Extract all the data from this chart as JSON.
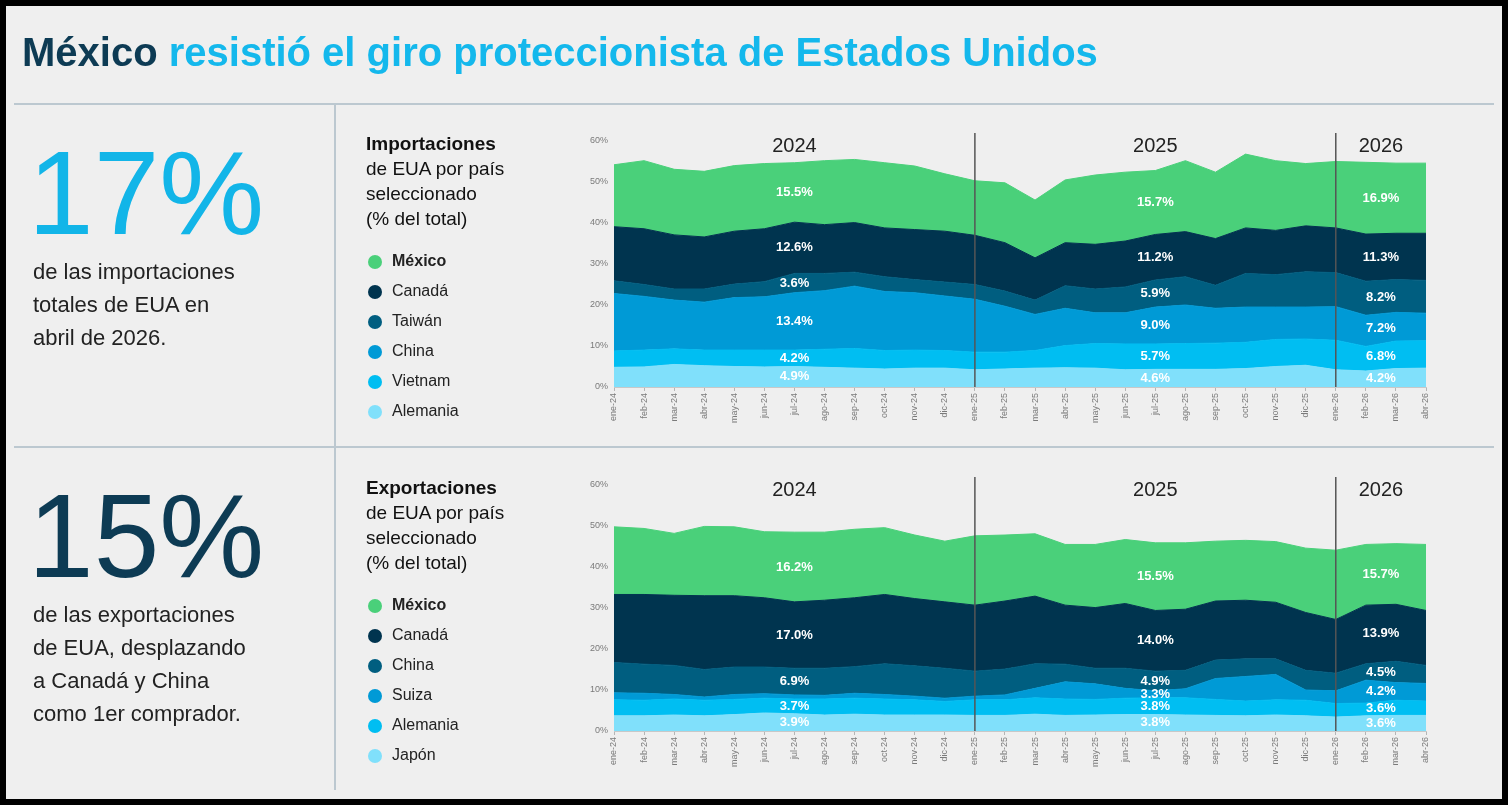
{
  "chart_data": [
    {
      "type": "other",
      "title": "México resistió el giro proteccionista de Estados Unidos",
      "colors": [
        "#0d3b54",
        "#14b8ec"
      ]
    },
    {
      "type": "other",
      "color": "#12b5e8",
      "annotations": [
        "17%",
        "de las importaciones totales de EUA en abril de 2026."
      ]
    },
    {
      "type": "area",
      "title": "Importaciones",
      "subtitle": "de EUA por país seleccionado (% del total)",
      "stacked": true,
      "legend": "left",
      "categories": [
        "ene-24",
        "feb-24",
        "mar-24",
        "abr-24",
        "may-24",
        "jun-24",
        "jul-24",
        "ago-24",
        "sep-24",
        "oct-24",
        "nov-24",
        "dic-24",
        "ene-25",
        "feb-25",
        "mar-25",
        "abr-25",
        "may-25",
        "jun-25",
        "jul-25",
        "ago-25",
        "sep-25",
        "oct-25",
        "nov-25",
        "dic-25",
        "ene-26",
        "feb-26",
        "mar-26",
        "abr-26"
      ],
      "ylim": [
        0,
        60
      ],
      "yticks": [
        {
          "value": 0,
          "label": "0%"
        },
        {
          "value": 10,
          "label": "10%"
        },
        {
          "value": 20,
          "label": "20%"
        },
        {
          "value": 30,
          "label": "30%"
        },
        {
          "value": 40,
          "label": "40%"
        },
        {
          "value": 50,
          "label": "50%"
        },
        {
          "value": 60,
          "label": "60%"
        }
      ],
      "series": [
        {
          "name": "Alemania",
          "color": "#80e0fb",
          "values": [
            4.8,
            4.9,
            5.5,
            5.2,
            5.0,
            4.9,
            5.0,
            4.8,
            4.6,
            4.4,
            4.6,
            4.6,
            4.2,
            4.4,
            4.6,
            4.7,
            4.6,
            4.2,
            4.3,
            4.3,
            4.3,
            4.5,
            5.0,
            5.3,
            4.2,
            3.9,
            4.5,
            4.6
          ]
        },
        {
          "name": "Vietnam",
          "color": "#00bef2",
          "values": [
            4.0,
            4.1,
            3.8,
            3.8,
            4.0,
            4.1,
            4.0,
            4.4,
            4.8,
            4.5,
            4.4,
            4.3,
            4.3,
            4.1,
            4.3,
            5.4,
            6.0,
            6.3,
            6.2,
            6.3,
            6.4,
            6.4,
            6.6,
            6.4,
            7.2,
            6.0,
            6.7,
            6.7
          ]
        },
        {
          "name": "China",
          "color": "#009ad6",
          "values": [
            14.0,
            13.1,
            11.9,
            11.7,
            12.8,
            13.0,
            14.0,
            14.3,
            15.2,
            14.4,
            14.0,
            13.3,
            12.9,
            11.2,
            8.8,
            9.1,
            7.5,
            7.6,
            9.0,
            9.4,
            8.5,
            8.6,
            7.9,
            7.8,
            8.2,
            7.6,
            7.0,
            6.7
          ]
        },
        {
          "name": "Taiwán",
          "color": "#005e80",
          "values": [
            3.1,
            2.9,
            2.7,
            3.2,
            3.3,
            3.7,
            4.7,
            4.2,
            3.4,
            3.6,
            3.2,
            3.4,
            3.6,
            3.7,
            3.5,
            5.5,
            5.8,
            6.3,
            6.6,
            6.9,
            5.6,
            8.2,
            7.9,
            8.6,
            8.3,
            8.3,
            8.0,
            8.0
          ]
        },
        {
          "name": "Canadá",
          "color": "#00344f",
          "values": [
            13.2,
            13.6,
            13.2,
            12.7,
            12.9,
            12.9,
            12.5,
            11.9,
            12.1,
            11.9,
            12.2,
            12.4,
            12.0,
            11.8,
            10.3,
            10.5,
            10.9,
            11.2,
            11.1,
            11.0,
            11.4,
            11.1,
            10.8,
            11.2,
            10.9,
            11.5,
            11.3,
            11.5
          ]
        },
        {
          "name": "México",
          "color": "#4ad07a",
          "values": [
            15.1,
            16.6,
            16.0,
            16.0,
            16.0,
            15.9,
            14.5,
            15.6,
            15.4,
            15.9,
            15.5,
            14.0,
            13.3,
            14.6,
            14.1,
            15.3,
            16.9,
            16.8,
            15.6,
            17.3,
            16.2,
            18.0,
            17.0,
            15.2,
            16.2,
            17.5,
            17.1,
            17.1
          ]
        }
      ],
      "ref_lines": [
        {
          "axis": "x",
          "value": "ene-25",
          "color": "#555555"
        },
        {
          "axis": "x",
          "value": "ene-26",
          "color": "#555555"
        }
      ],
      "annotations": [
        "2024",
        "2025",
        "2026",
        "15.5%",
        "12.6%",
        "3.6%",
        "13.4%",
        "4.2%",
        "4.9%",
        "15.7%",
        "11.2%",
        "5.9%",
        "9.0%",
        "5.7%",
        "4.6%",
        "16.9%",
        "11.3%",
        "8.2%",
        "7.2%",
        "6.8%",
        "4.2%"
      ]
    },
    {
      "type": "other",
      "color": "#0d3b54",
      "annotations": [
        "15%",
        "de las exportaciones de EUA, desplazando a Canadá y China como 1er comprador."
      ]
    },
    {
      "type": "area",
      "title": "Exportaciones",
      "subtitle": "de EUA por país seleccionado (% del total)",
      "stacked": true,
      "legend": "left",
      "categories": [
        "ene-24",
        "feb-24",
        "mar-24",
        "abr-24",
        "may-24",
        "jun-24",
        "jul-24",
        "ago-24",
        "sep-24",
        "oct-24",
        "nov-24",
        "dic-24",
        "ene-25",
        "feb-25",
        "mar-25",
        "abr-25",
        "may-25",
        "jun-25",
        "jul-25",
        "ago-25",
        "sep-25",
        "oct-25",
        "nov-25",
        "dic-25",
        "ene-26",
        "feb-26",
        "mar-26",
        "abr-26"
      ],
      "ylim": [
        0,
        60
      ],
      "yticks": [
        {
          "value": 0,
          "label": "0%"
        },
        {
          "value": 10,
          "label": "10%"
        },
        {
          "value": 20,
          "label": "20%"
        },
        {
          "value": 30,
          "label": "30%"
        },
        {
          "value": 40,
          "label": "40%"
        },
        {
          "value": 50,
          "label": "50%"
        },
        {
          "value": 60,
          "label": "60%"
        }
      ],
      "series": [
        {
          "name": "Japón",
          "color": "#80e0fb",
          "values": [
            3.7,
            3.7,
            3.9,
            3.7,
            4.0,
            4.4,
            4.2,
            3.9,
            4.1,
            3.9,
            3.9,
            3.9,
            3.8,
            3.8,
            4.1,
            3.8,
            3.9,
            4.0,
            4.0,
            3.9,
            3.8,
            3.7,
            3.9,
            3.7,
            3.4,
            3.7,
            3.8,
            3.8
          ]
        },
        {
          "name": "Alemania",
          "color": "#00bef2",
          "values": [
            3.9,
            3.8,
            3.9,
            3.8,
            3.7,
            3.6,
            3.6,
            3.9,
            3.9,
            3.9,
            3.7,
            3.3,
            3.8,
            3.8,
            4.0,
            4.0,
            3.8,
            4.0,
            4.1,
            4.2,
            3.9,
            3.6,
            3.7,
            3.8,
            3.3,
            3.1,
            3.7,
            3.5
          ]
        },
        {
          "name": "Suiza",
          "color": "#009ad6",
          "values": [
            1.7,
            1.7,
            1.1,
            0.8,
            1.2,
            1.1,
            1.0,
            0.9,
            1.2,
            1.1,
            0.9,
            0.8,
            0.9,
            1.2,
            2.3,
            4.2,
            3.8,
            2.4,
            1.7,
            2.2,
            5.1,
            6.0,
            6.2,
            2.5,
            3.1,
            5.6,
            4.3,
            4.3
          ]
        },
        {
          "name": "China",
          "color": "#005e80",
          "values": [
            7.4,
            7.1,
            7.1,
            6.7,
            6.7,
            6.5,
            6.5,
            6.6,
            6.5,
            7.5,
            7.4,
            7.3,
            6.1,
            6.3,
            6.0,
            4.3,
            3.8,
            4.9,
            4.8,
            4.5,
            4.5,
            4.3,
            3.8,
            4.8,
            4.3,
            4.0,
            5.2,
            4.4
          ]
        },
        {
          "name": "Canadá",
          "color": "#00344f",
          "values": [
            16.6,
            17.0,
            17.1,
            18.0,
            17.4,
            16.9,
            16.2,
            16.6,
            16.8,
            16.9,
            16.4,
            16.2,
            16.1,
            16.6,
            16.5,
            14.4,
            14.8,
            15.8,
            14.8,
            14.9,
            14.4,
            14.3,
            13.8,
            14.1,
            13.1,
            14.3,
            13.9,
            13.4
          ]
        },
        {
          "name": "México",
          "color": "#4ad07a",
          "values": [
            16.5,
            16.1,
            15.1,
            16.9,
            16.8,
            16.1,
            17.0,
            16.6,
            16.7,
            16.3,
            15.5,
            14.8,
            16.9,
            16.1,
            15.2,
            14.8,
            15.4,
            15.6,
            16.5,
            16.2,
            14.6,
            14.6,
            14.8,
            15.7,
            16.9,
            14.8,
            14.8,
            16.1
          ]
        }
      ],
      "ref_lines": [
        {
          "axis": "x",
          "value": "ene-25",
          "color": "#555555"
        },
        {
          "axis": "x",
          "value": "ene-26",
          "color": "#555555"
        }
      ],
      "annotations": [
        "2024",
        "2025",
        "2026",
        "16.2%",
        "17.0%",
        "6.9%",
        "3.7%",
        "3.9%",
        "15.5%",
        "14.0%",
        "4.9%",
        "3.3%",
        "3.8%",
        "3.8%",
        "15.7%",
        "13.9%",
        "4.5%",
        "4.2%",
        "3.6%",
        "3.6%"
      ]
    }
  ]
}
